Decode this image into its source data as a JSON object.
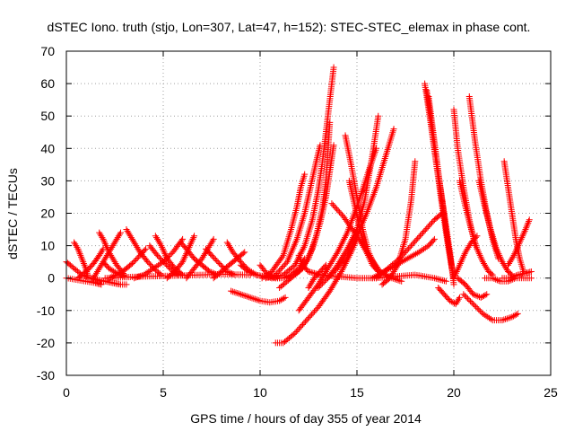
{
  "chart_data": {
    "type": "scatter",
    "title": "dSTEC Iono. truth (stjo, Lon=307, Lat=47, h=152): STEC-STEC_elemax in phase cont.",
    "xlabel": "GPS time / hours of day 355 of year 2014",
    "ylabel": "dSTEC  / TECUs",
    "xlim": [
      0,
      25
    ],
    "ylim": [
      -30,
      70
    ],
    "xticks": [
      0,
      5,
      10,
      15,
      20,
      25
    ],
    "yticks": [
      -30,
      -20,
      -10,
      0,
      10,
      20,
      30,
      40,
      50,
      60,
      70
    ],
    "grid": true,
    "marker": "+",
    "color": "#ff0000",
    "arcs": [
      {
        "x": [
          0.0,
          0.2,
          0.5,
          0.8,
          1.2,
          1.6
        ],
        "y": [
          5,
          4,
          2.5,
          1,
          0,
          -0.5
        ]
      },
      {
        "x": [
          0.0,
          0.5,
          1.0,
          1.5,
          1.8
        ],
        "y": [
          0,
          -0.5,
          -1,
          -1.5,
          -2
        ]
      },
      {
        "x": [
          0.4,
          0.6,
          0.8,
          1.0,
          1.1
        ],
        "y": [
          11,
          9,
          6,
          3,
          1
        ]
      },
      {
        "x": [
          0.6,
          0.8,
          1.1,
          1.4,
          1.7,
          1.9
        ],
        "y": [
          0,
          1,
          2.5,
          4.5,
          7,
          9
        ]
      },
      {
        "x": [
          1.2,
          1.6,
          2.0,
          2.4,
          2.8,
          3.1
        ],
        "y": [
          0,
          -0.5,
          -1,
          -1.5,
          -2,
          -2
        ]
      },
      {
        "x": [
          1.4,
          1.7,
          2.0,
          2.3,
          2.6,
          2.8
        ],
        "y": [
          0,
          3,
          6,
          9,
          12,
          14
        ]
      },
      {
        "x": [
          1.7,
          1.9,
          2.2,
          2.6,
          3.0
        ],
        "y": [
          14,
          12,
          8,
          4,
          1
        ]
      },
      {
        "x": [
          1.9,
          2.2,
          2.6,
          3.0
        ],
        "y": [
          5,
          3,
          1.5,
          0.5
        ]
      },
      {
        "x": [
          2.2,
          2.6,
          3.0,
          3.4,
          3.8,
          4.1
        ],
        "y": [
          0,
          1,
          2.5,
          4.5,
          7,
          9
        ]
      },
      {
        "x": [
          3.1,
          3.4,
          3.8,
          4.2,
          4.6,
          4.9
        ],
        "y": [
          15,
          12,
          8,
          5,
          2.5,
          1
        ]
      },
      {
        "x": [
          3.5,
          4.0,
          4.5,
          5.0,
          5.5,
          6.0
        ],
        "y": [
          0,
          1,
          3,
          5,
          8,
          12
        ]
      },
      {
        "x": [
          4.3,
          4.7,
          5.1,
          5.5,
          5.8
        ],
        "y": [
          10,
          7,
          4.5,
          2,
          1
        ]
      },
      {
        "x": [
          4.6,
          4.9,
          5.2,
          5.6,
          6.0
        ],
        "y": [
          13,
          10,
          6,
          3,
          1
        ]
      },
      {
        "x": [
          5.2,
          5.6,
          6.0,
          6.3,
          6.6
        ],
        "y": [
          0,
          2,
          5,
          9,
          13
        ]
      },
      {
        "x": [
          5.9,
          6.2,
          6.6,
          7.0,
          7.4,
          7.8
        ],
        "y": [
          11,
          9,
          6,
          4,
          2,
          1
        ]
      },
      {
        "x": [
          6.2,
          6.6,
          7.0,
          7.3,
          7.6
        ],
        "y": [
          0,
          3,
          6,
          9,
          12
        ]
      },
      {
        "x": [
          7.2,
          7.5,
          7.9,
          8.3,
          8.7
        ],
        "y": [
          9,
          7,
          4.5,
          2,
          1
        ]
      },
      {
        "x": [
          7.6,
          8.0,
          8.4,
          8.8,
          9.2
        ],
        "y": [
          0,
          2,
          4,
          6,
          8
        ]
      },
      {
        "x": [
          8.3,
          8.6,
          9.0,
          9.4,
          9.8
        ],
        "y": [
          11,
          8,
          5,
          2.5,
          1
        ]
      },
      {
        "x": [
          9.0,
          9.4,
          9.8,
          10.2,
          10.6,
          11.0
        ],
        "y": [
          4,
          2,
          1,
          0.5,
          0,
          0
        ]
      },
      {
        "x": [
          2.0,
          4.0,
          6.0,
          8.0,
          9.5
        ],
        "y": [
          0,
          0.5,
          0.8,
          1.2,
          1
        ]
      },
      {
        "x": [
          8.5,
          9.0,
          9.5,
          10.0,
          10.5,
          11.0,
          11.3
        ],
        "y": [
          -4,
          -5,
          -6,
          -7,
          -7.5,
          -7,
          -6
        ]
      },
      {
        "x": [
          10.0,
          10.4,
          10.8,
          11.2,
          11.6,
          12.0,
          12.3
        ],
        "y": [
          4,
          1,
          0,
          0,
          1,
          3,
          6
        ]
      },
      {
        "x": [
          10.1,
          10.6,
          11.2,
          11.6,
          11.9,
          12.1,
          12.3
        ],
        "y": [
          0,
          2,
          7,
          15,
          22,
          28,
          32
        ]
      },
      {
        "x": [
          10.3,
          10.8,
          11.4,
          11.9,
          12.3,
          12.6,
          12.9,
          13.1
        ],
        "y": [
          0,
          1,
          5,
          12,
          20,
          28,
          36,
          41
        ]
      },
      {
        "x": [
          10.6,
          11.2,
          11.8,
          12.3,
          12.7,
          13.0,
          13.2,
          13.5,
          13.8
        ],
        "y": [
          0,
          1,
          4,
          10,
          18,
          27,
          35,
          50,
          65
        ]
      },
      {
        "x": [
          11.0,
          11.6,
          12.2,
          12.7,
          13.1,
          13.4,
          13.6,
          13.8
        ],
        "y": [
          -3,
          0,
          3,
          9,
          17,
          25,
          33,
          41
        ]
      },
      {
        "x": [
          11.5,
          12.0,
          12.5,
          12.9,
          13.2,
          13.4,
          13.6
        ],
        "y": [
          0,
          2,
          6,
          13,
          21,
          30,
          48
        ]
      },
      {
        "x": [
          10.8,
          11.2,
          11.8,
          12.4,
          13.0,
          13.6,
          14.2,
          14.7,
          15.0
        ],
        "y": [
          -20,
          -20,
          -17,
          -13,
          -9,
          -4,
          2,
          8,
          12
        ]
      },
      {
        "x": [
          12.0,
          12.5,
          13.0,
          13.5,
          14.0,
          14.5,
          15.0,
          15.6,
          16.0
        ],
        "y": [
          -10,
          -6,
          -2,
          3,
          8,
          14,
          22,
          33,
          40
        ]
      },
      {
        "x": [
          13.0,
          13.5,
          14.0,
          14.5,
          15.0,
          15.4,
          15.8,
          16.1
        ],
        "y": [
          -3,
          0,
          4,
          9,
          15,
          24,
          38,
          50
        ]
      },
      {
        "x": [
          13.5,
          14.0,
          14.5,
          15.0,
          15.5,
          16.0,
          16.5,
          16.9
        ],
        "y": [
          0,
          3,
          7,
          13,
          20,
          28,
          38,
          46
        ]
      },
      {
        "x": [
          14.4,
          14.7,
          15.0,
          15.3,
          15.6,
          16.0,
          16.3
        ],
        "y": [
          44,
          35,
          25,
          15,
          8,
          3,
          1
        ]
      },
      {
        "x": [
          14.6,
          14.9,
          15.2,
          15.5,
          15.8,
          16.1
        ],
        "y": [
          30,
          22,
          14,
          8,
          4,
          2
        ]
      },
      {
        "x": [
          13.7,
          14.3,
          15.0,
          15.6,
          16.2,
          16.8,
          17.3
        ],
        "y": [
          23,
          19,
          13,
          7,
          2,
          0,
          -1
        ]
      },
      {
        "x": [
          12.0,
          12.2,
          12.5,
          12.8,
          13.1
        ],
        "y": [
          7,
          4,
          2,
          1.5,
          1
        ]
      },
      {
        "x": [
          12.5,
          12.8,
          13.1,
          13.4
        ],
        "y": [
          -3,
          0,
          2,
          4
        ]
      },
      {
        "x": [
          13.1,
          14.0,
          15.0,
          16.0,
          17.0,
          18.0,
          19.0,
          19.6
        ],
        "y": [
          1,
          0.5,
          0,
          0,
          0.5,
          1,
          0,
          -1
        ]
      },
      {
        "x": [
          15.8,
          16.4,
          17.0,
          17.6,
          18.2,
          18.7,
          19.0
        ],
        "y": [
          0,
          2,
          4,
          6,
          8,
          10,
          12
        ]
      },
      {
        "x": [
          16.0,
          16.6,
          17.2,
          17.8,
          18.4,
          19.0,
          19.4
        ],
        "y": [
          0,
          3,
          6,
          10,
          14,
          18,
          20
        ]
      },
      {
        "x": [
          16.3,
          16.7,
          17.1,
          17.5,
          17.8,
          18.0
        ],
        "y": [
          -2,
          0,
          4,
          12,
          24,
          36
        ]
      },
      {
        "x": [
          18.5,
          18.8,
          19.1,
          19.4,
          19.7,
          20.0
        ],
        "y": [
          60,
          48,
          35,
          22,
          10,
          0
        ]
      },
      {
        "x": [
          18.6,
          18.9,
          19.2,
          19.5,
          19.8,
          20.0
        ],
        "y": [
          58,
          45,
          32,
          20,
          8,
          -2
        ]
      },
      {
        "x": [
          18.7,
          19.0,
          19.3,
          19.6,
          19.9
        ],
        "y": [
          56,
          42,
          28,
          15,
          3
        ]
      },
      {
        "x": [
          19.2,
          19.5,
          19.8,
          20.1,
          20.3
        ],
        "y": [
          -3,
          -5,
          -7,
          -8,
          -6
        ]
      },
      {
        "x": [
          20.0,
          20.3,
          20.6,
          20.9,
          21.2
        ],
        "y": [
          0,
          4,
          8,
          11,
          13
        ]
      },
      {
        "x": [
          20.0,
          20.2,
          20.5,
          20.8,
          21.1
        ],
        "y": [
          52,
          40,
          28,
          18,
          10
        ]
      },
      {
        "x": [
          20.3,
          20.6,
          20.9,
          21.2,
          21.5,
          21.8,
          22.0
        ],
        "y": [
          30,
          22,
          15,
          9,
          5,
          2,
          1
        ]
      },
      {
        "x": [
          20.8,
          21.1,
          21.4,
          21.7,
          22.0,
          22.3
        ],
        "y": [
          56,
          42,
          30,
          20,
          12,
          6
        ]
      },
      {
        "x": [
          21.3,
          21.6,
          21.9,
          22.2,
          22.5,
          22.8,
          23.0
        ],
        "y": [
          30,
          22,
          15,
          9,
          5,
          2,
          1
        ]
      },
      {
        "x": [
          20.5,
          21.0,
          21.5,
          22.0,
          22.5,
          23.0,
          23.3
        ],
        "y": [
          -5,
          -8,
          -11,
          -13,
          -13,
          -12,
          -11
        ]
      },
      {
        "x": [
          20.2,
          20.6,
          21.0,
          21.4,
          21.7
        ],
        "y": [
          0,
          -2,
          -5,
          -6,
          -5
        ]
      },
      {
        "x": [
          22.6,
          22.8,
          23.0,
          23.2,
          23.4,
          23.6
        ],
        "y": [
          36,
          28,
          20,
          12,
          6,
          2
        ]
      },
      {
        "x": [
          22.5,
          22.9,
          23.3,
          23.7,
          24.0
        ],
        "y": [
          0,
          0,
          1,
          1.5,
          2
        ]
      },
      {
        "x": [
          22.8,
          23.1,
          23.4,
          23.7,
          23.9
        ],
        "y": [
          4,
          7,
          11,
          15,
          18
        ]
      },
      {
        "x": [
          21.6,
          22.0,
          22.4,
          22.8,
          23.2,
          23.6,
          24.0
        ],
        "y": [
          0,
          0,
          -1,
          -1,
          0,
          0,
          0
        ]
      }
    ]
  }
}
